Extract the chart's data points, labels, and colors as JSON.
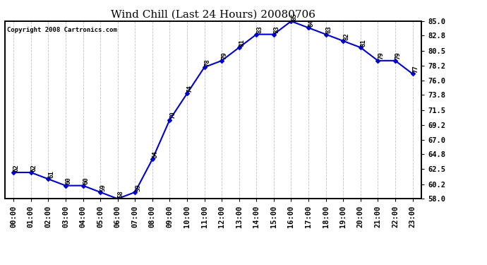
{
  "title": "Wind Chill (Last 24 Hours) 20080706",
  "copyright": "Copyright 2008 Cartronics.com",
  "times": [
    "00:00",
    "01:00",
    "02:00",
    "03:00",
    "04:00",
    "05:00",
    "06:00",
    "07:00",
    "08:00",
    "09:00",
    "10:00",
    "11:00",
    "12:00",
    "13:00",
    "14:00",
    "15:00",
    "16:00",
    "17:00",
    "18:00",
    "19:00",
    "20:00",
    "21:00",
    "22:00",
    "23:00"
  ],
  "values": [
    62,
    62,
    61,
    60,
    60,
    59,
    58,
    59,
    64,
    70,
    74,
    78,
    79,
    81,
    83,
    83,
    85,
    84,
    83,
    82,
    81,
    79,
    79,
    77
  ],
  "line_color": "#0000cc",
  "marker": "D",
  "marker_size": 3,
  "ylim": [
    58.0,
    85.0
  ],
  "yticks": [
    58.0,
    60.2,
    62.5,
    64.8,
    67.0,
    69.2,
    71.5,
    73.8,
    76.0,
    78.2,
    80.5,
    82.8,
    85.0
  ],
  "background_color": "#ffffff",
  "plot_bg_color": "#ffffff",
  "grid_color": "#bbbbbb",
  "title_fontsize": 11,
  "tick_fontsize": 7.5,
  "annotation_fontsize": 6.5,
  "copyright_fontsize": 6.5
}
